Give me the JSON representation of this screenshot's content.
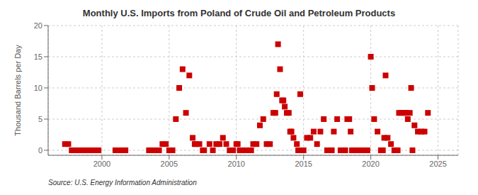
{
  "chart_data": {
    "type": "scatter",
    "title": "Monthly U.S. Imports from Poland of Crude Oil and Petroleum Products",
    "ylabel": "Thousand Barrels per Day",
    "annotations": [
      "Source: U.S. Energy Information Administration"
    ],
    "x": [
      1997.25,
      1997.5,
      1997.75,
      1998.0,
      1998.25,
      1998.5,
      1998.75,
      1999.0,
      1999.25,
      1999.5,
      1999.75,
      2001.0,
      2001.25,
      2001.5,
      2001.75,
      2003.5,
      2003.75,
      2004.0,
      2004.25,
      2004.5,
      2004.75,
      2005.0,
      2005.25,
      2005.5,
      2005.75,
      2006.0,
      2006.25,
      2006.5,
      2006.75,
      2006.9,
      2007.0,
      2007.25,
      2007.5,
      2007.6,
      2008.0,
      2008.25,
      2008.5,
      2008.75,
      2009.0,
      2009.25,
      2009.5,
      2009.75,
      2010.0,
      2010.1,
      2010.25,
      2010.5,
      2010.75,
      2011.0,
      2011.1,
      2011.25,
      2011.5,
      2011.75,
      2012.0,
      2012.25,
      2012.5,
      2012.75,
      2012.9,
      2013.0,
      2013.1,
      2013.25,
      2013.4,
      2013.5,
      2013.6,
      2013.75,
      2013.9,
      2014.0,
      2014.1,
      2014.25,
      2014.5,
      2014.6,
      2014.75,
      2015.0,
      2015.25,
      2015.5,
      2015.75,
      2016.0,
      2016.25,
      2016.5,
      2016.75,
      2017.0,
      2017.1,
      2017.25,
      2017.5,
      2017.75,
      2018.0,
      2018.1,
      2018.25,
      2018.4,
      2018.5,
      2018.6,
      2018.75,
      2019.0,
      2019.25,
      2019.5,
      2019.75,
      2020.0,
      2020.1,
      2020.25,
      2020.5,
      2020.75,
      2020.9,
      2021.0,
      2021.1,
      2021.25,
      2021.5,
      2021.75,
      2021.9,
      2022.0,
      2022.1,
      2022.25,
      2022.5,
      2022.6,
      2022.75,
      2022.9,
      2023.0,
      2023.1,
      2023.25,
      2023.5,
      2023.75,
      2024.0,
      2024.25
    ],
    "values": [
      1,
      1,
      0,
      0,
      0,
      0,
      0,
      0,
      0,
      0,
      0,
      0,
      0,
      0,
      0,
      0,
      0,
      0,
      0,
      1,
      1,
      0,
      0,
      5,
      10,
      13,
      6,
      12,
      2,
      1,
      1,
      1,
      0,
      0,
      1,
      0,
      1,
      1,
      2,
      1,
      0,
      0,
      1,
      1,
      0,
      0,
      0,
      0,
      0,
      1,
      1,
      4,
      5,
      1,
      1,
      6,
      6,
      9,
      17,
      13,
      8,
      8,
      7,
      6,
      6,
      3,
      3,
      2,
      1,
      0,
      9,
      0,
      2,
      2,
      3,
      1,
      3,
      5,
      0,
      0,
      0,
      3,
      5,
      0,
      0,
      0,
      5,
      5,
      3,
      0,
      0,
      0,
      0,
      0,
      0,
      15,
      10,
      5,
      3,
      0,
      0,
      2,
      12,
      2,
      1,
      0,
      0,
      0,
      6,
      6,
      6,
      6,
      5,
      6,
      10,
      0,
      4,
      3,
      3,
      3,
      6
    ],
    "color": "#cc0000",
    "marker": "square",
    "xlim": [
      1996.0,
      2026.5
    ],
    "ylim": [
      -0.8,
      20
    ],
    "xticks": [
      2000,
      2005,
      2010,
      2015,
      2020,
      2025
    ],
    "yticks": [
      0,
      5,
      10,
      15,
      20
    ],
    "grid": true
  }
}
